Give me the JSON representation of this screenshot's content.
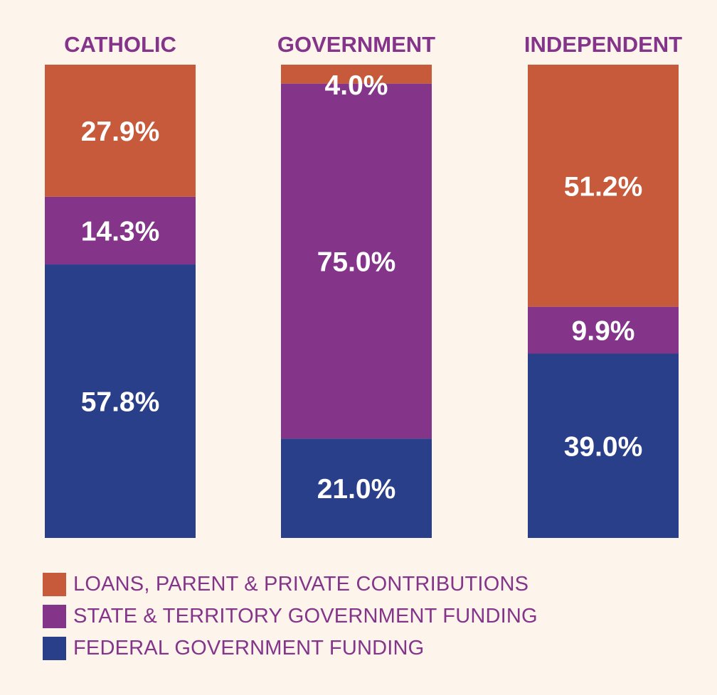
{
  "chart_data": {
    "type": "bar",
    "stacked": true,
    "percent_stacked": true,
    "title": "",
    "xlabel": "",
    "ylabel": "",
    "ylim": [
      0,
      100
    ],
    "grid": false,
    "legend_position": "bottom-left",
    "categories": [
      "CATHOLIC",
      "GOVERNMENT",
      "INDEPENDENT"
    ],
    "series": [
      {
        "name": "FEDERAL GOVERNMENT FUNDING",
        "color": "#2a3f8a",
        "values": [
          57.8,
          21.0,
          39.0
        ],
        "labels": [
          "57.8%",
          "21.0%",
          "39.0%"
        ]
      },
      {
        "name": "STATE & TERRITORY GOVERNMENT FUNDING",
        "color": "#84358a",
        "values": [
          14.3,
          75.0,
          9.9
        ],
        "labels": [
          "14.3%",
          "75.0%",
          "9.9%"
        ]
      },
      {
        "name": "LOANS, PARENT & PRIVATE CONTRIBUTIONS",
        "color": "#c65a3a",
        "values": [
          27.9,
          4.0,
          51.2
        ],
        "labels": [
          "27.9%",
          "4.0%",
          "51.2%"
        ]
      }
    ],
    "legend_order": [
      2,
      1,
      0
    ],
    "category_label_color": "#84358a"
  }
}
